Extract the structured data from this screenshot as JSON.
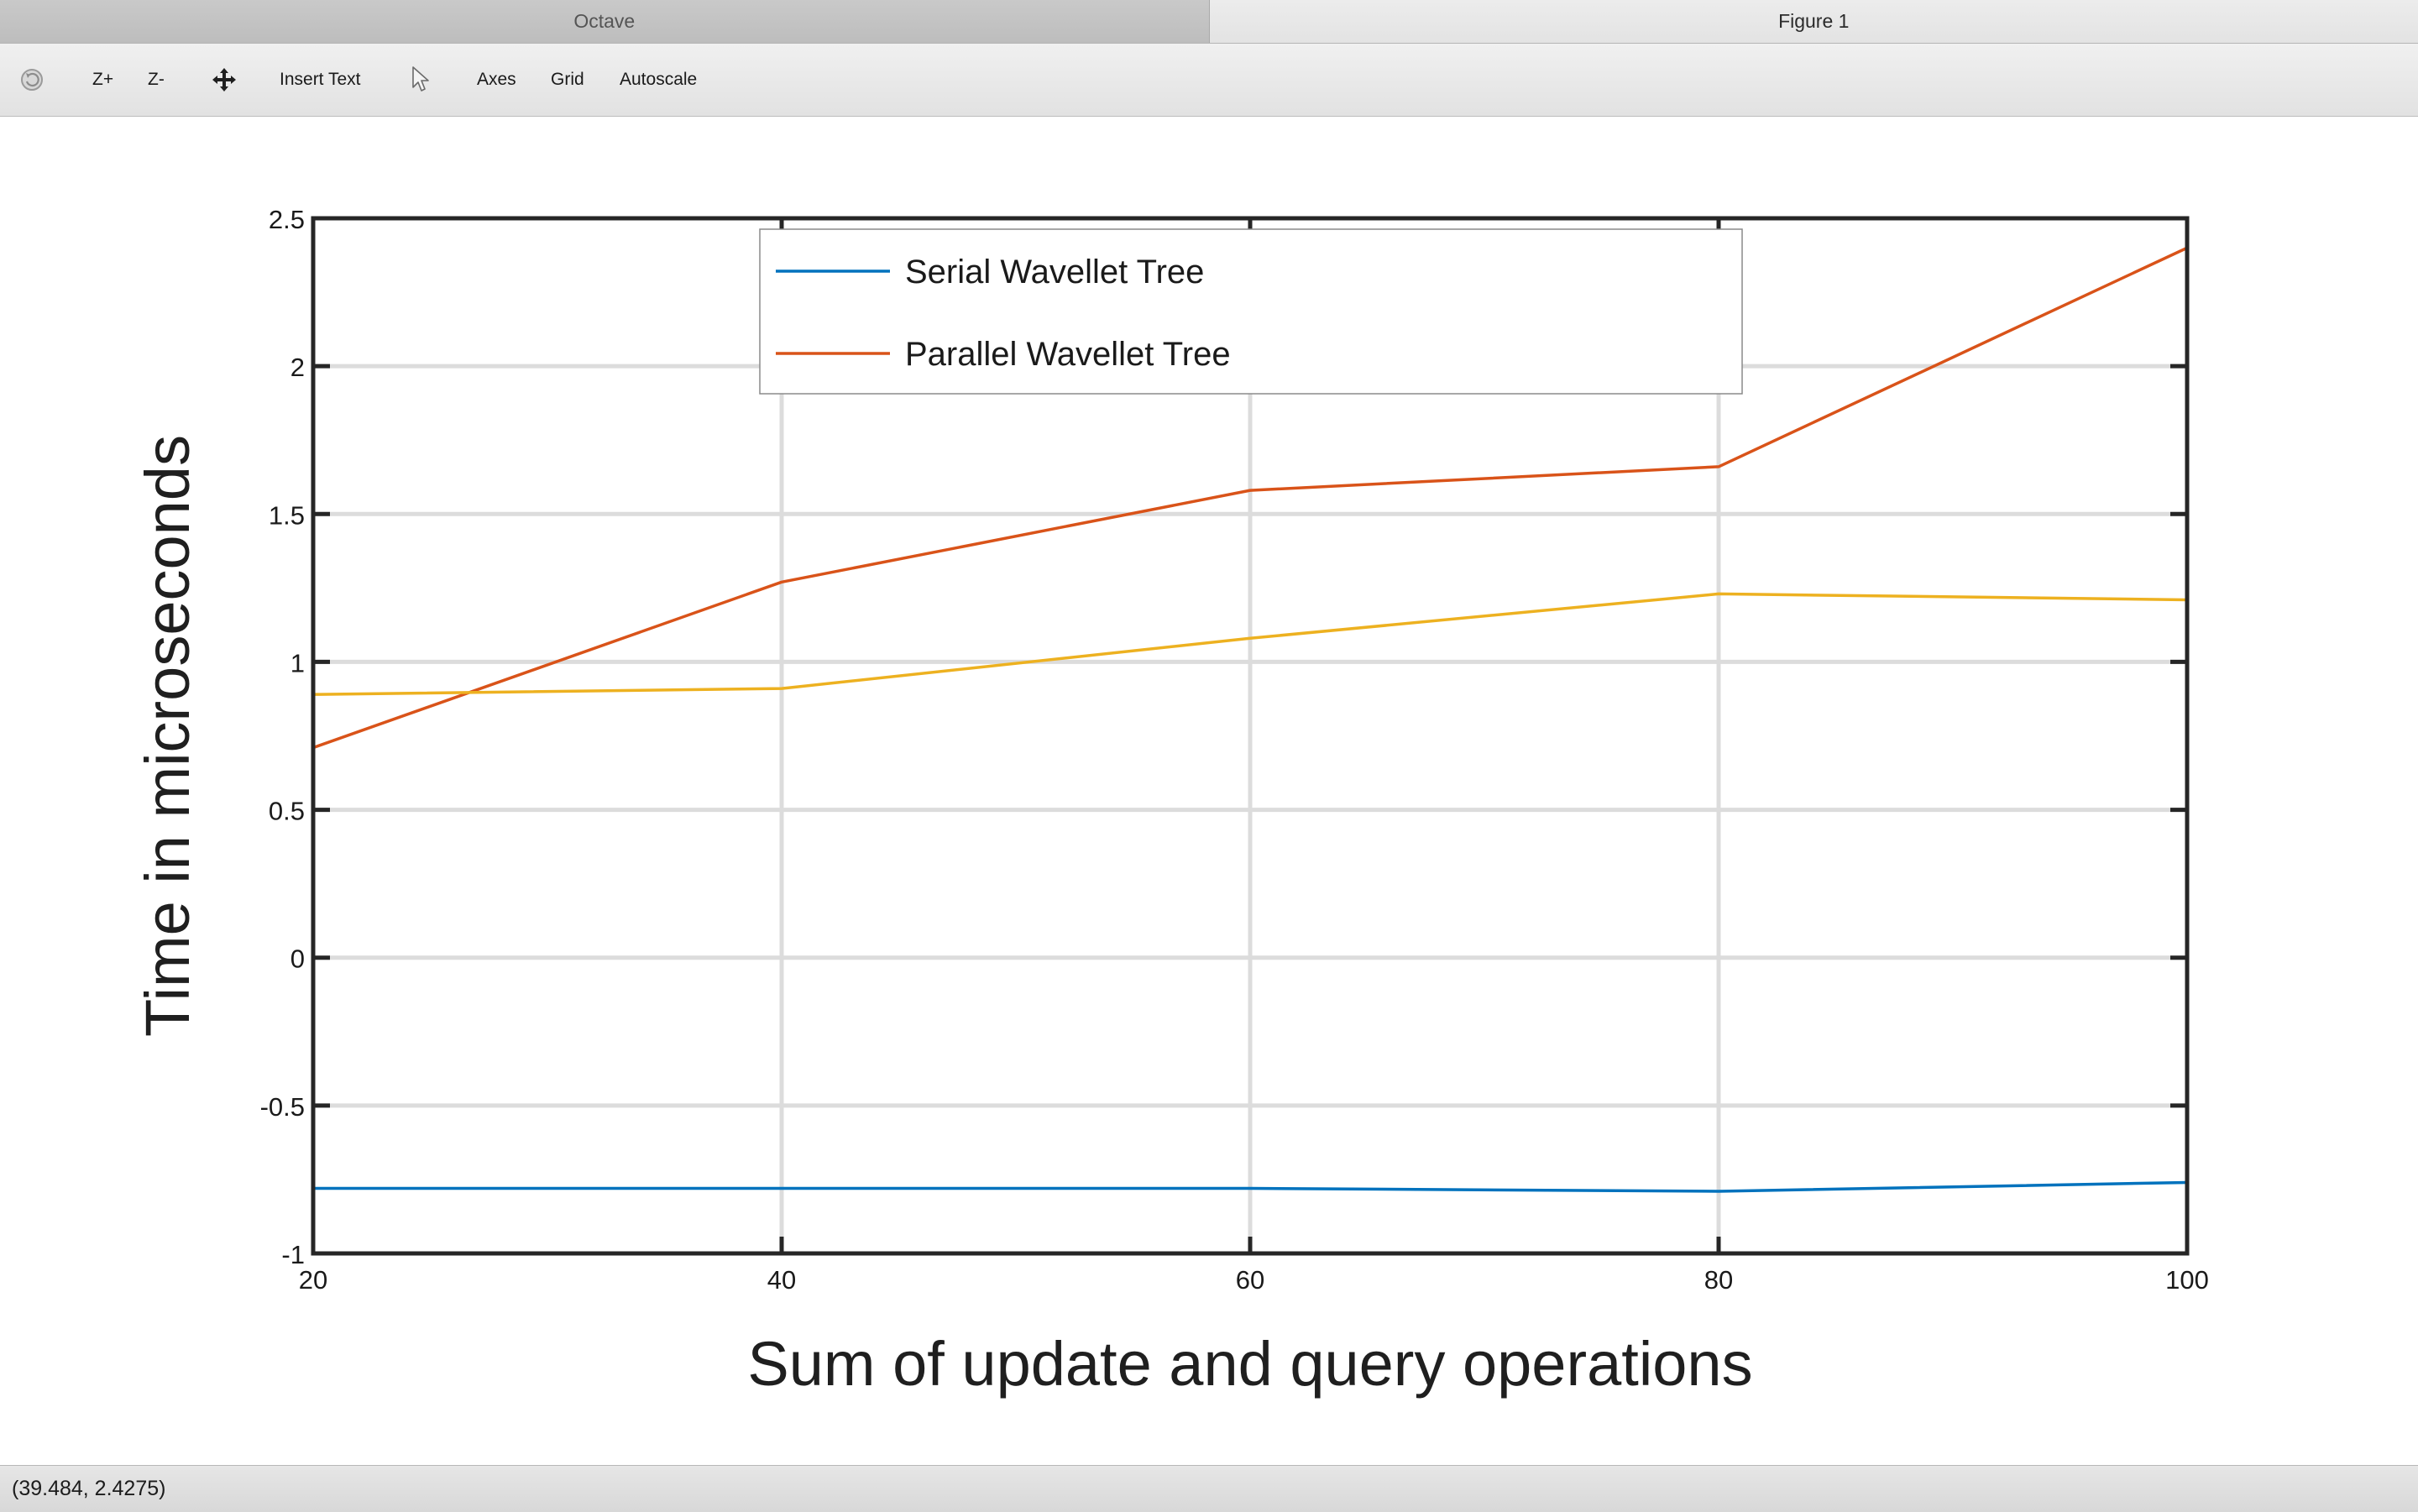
{
  "tabs": [
    {
      "label": "Octave"
    },
    {
      "label": "Figure 1"
    }
  ],
  "toolbar": {
    "rotate_icon": "rotate-icon",
    "zoom_in_label": "Z+",
    "zoom_out_label": "Z-",
    "pan_icon": "pan-arrows-icon",
    "insert_text_label": "Insert Text",
    "select_icon": "cursor-arrow-icon",
    "axes_label": "Axes",
    "grid_label": "Grid",
    "autoscale_label": "Autoscale"
  },
  "status": {
    "coordinates": "(39.484, 2.4275)"
  },
  "colors": {
    "series_serial": "#0072bd",
    "series_parallel": "#d95319",
    "series_third": "#edb120",
    "grid": "#dcdcdc",
    "axes": "#262626"
  },
  "chart_data": {
    "type": "line",
    "title": "",
    "xlabel": "Sum of update and query operations",
    "ylabel": "Time in microseconds",
    "xlim": [
      20,
      100
    ],
    "ylim": [
      -1,
      2.5
    ],
    "xticks": [
      "20",
      "40",
      "60",
      "80",
      "100"
    ],
    "yticks": [
      "-1",
      "-0.5",
      "0",
      "0.5",
      "1",
      "1.5",
      "2",
      "2.5"
    ],
    "grid": true,
    "legend_position": "top",
    "x": [
      20,
      40,
      60,
      80,
      100
    ],
    "series": [
      {
        "name": "Serial Wavellet Tree",
        "values": [
          -0.78,
          -0.78,
          -0.78,
          -0.79,
          -0.76
        ]
      },
      {
        "name": "Parallel Wavellet Tree",
        "values": [
          0.71,
          1.27,
          1.58,
          1.66,
          2.4
        ]
      },
      {
        "values": [
          0.89,
          0.91,
          1.08,
          1.23,
          1.21
        ]
      }
    ]
  }
}
